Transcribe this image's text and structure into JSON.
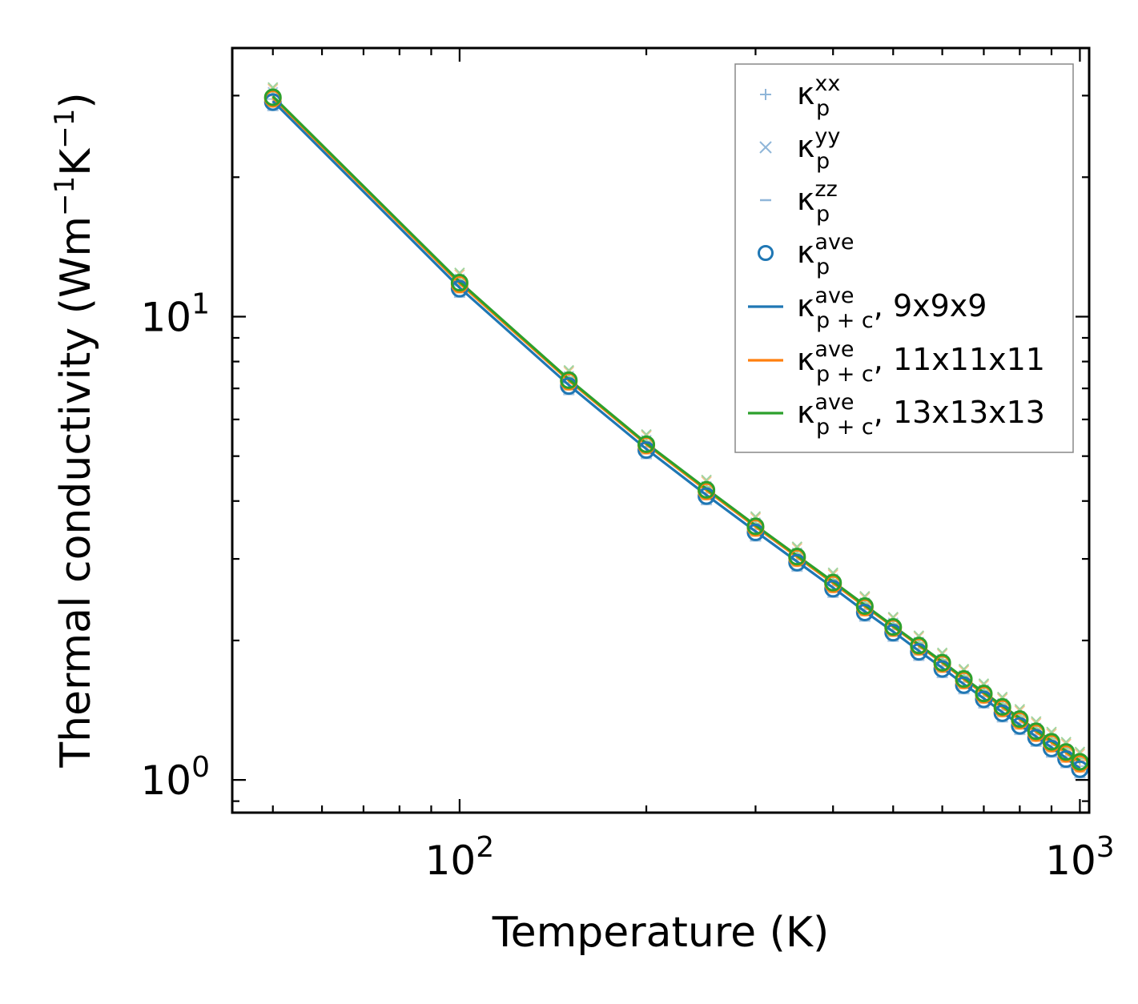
{
  "chart_data": {
    "type": "line",
    "xscale": "log",
    "yscale": "log",
    "xlabel": "Temperature (K)",
    "ylabel": "Thermal conductivity (Wm",
    "ylabel_sup1": "−1",
    "ylabel_mid": "K",
    "ylabel_sup2": "−1",
    "ylabel_end": ")",
    "xlim": [
      43,
      1035
    ],
    "ylim": [
      0.85,
      38
    ],
    "xticks": [
      {
        "value": 100,
        "base": "10",
        "exp": "2"
      },
      {
        "value": 1000,
        "base": "10",
        "exp": "3"
      }
    ],
    "yticks": [
      {
        "value": 1,
        "base": "10",
        "exp": "0"
      },
      {
        "value": 10,
        "base": "10",
        "exp": "1"
      }
    ],
    "x": [
      50,
      100,
      150,
      200,
      250,
      300,
      350,
      400,
      450,
      500,
      550,
      600,
      650,
      700,
      750,
      800,
      850,
      900,
      950,
      1000
    ],
    "series": [
      {
        "name": "κp+c ave, 9x9x9",
        "kind": "line",
        "color": "#1f77b4",
        "values": [
          29.2,
          11.55,
          7.12,
          5.18,
          4.12,
          3.44,
          2.96,
          2.6,
          2.31,
          2.09,
          1.9,
          1.745,
          1.61,
          1.5,
          1.4,
          1.315,
          1.24,
          1.175,
          1.115,
          1.06
        ]
      },
      {
        "name": "κp+c ave, 11x11x11",
        "kind": "line",
        "color": "#ff7f0e",
        "values": [
          29.7,
          11.8,
          7.28,
          5.3,
          4.22,
          3.52,
          3.03,
          2.66,
          2.37,
          2.14,
          1.95,
          1.79,
          1.65,
          1.535,
          1.435,
          1.35,
          1.27,
          1.205,
          1.145,
          1.09
        ]
      },
      {
        "name": "κp+c ave, 13x13x13",
        "kind": "line",
        "color": "#2ca02c",
        "values": [
          29.9,
          11.9,
          7.33,
          5.33,
          4.25,
          3.545,
          3.05,
          2.68,
          2.385,
          2.15,
          1.96,
          1.8,
          1.66,
          1.545,
          1.445,
          1.36,
          1.28,
          1.215,
          1.155,
          1.1
        ]
      }
    ],
    "legend": {
      "position": "upper right",
      "entries": [
        {
          "marker": "plus",
          "sym": "κ",
          "sub": "p",
          "sup": "xx",
          "suffix": "",
          "color": "#8fb6d9"
        },
        {
          "marker": "x",
          "sym": "κ",
          "sub": "p",
          "sup": "yy",
          "suffix": "",
          "color": "#8fb6d9"
        },
        {
          "marker": "hline",
          "sym": "κ",
          "sub": "p",
          "sup": "zz",
          "suffix": "",
          "color": "#8fb6d9"
        },
        {
          "marker": "circle",
          "sym": "κ",
          "sub": "p",
          "sup": "ave",
          "suffix": "",
          "color": "#1f77b4"
        },
        {
          "marker": "line",
          "sym": "κ",
          "sub": "p + c",
          "sup": "ave",
          "suffix": ", 9x9x9",
          "color": "#1f77b4"
        },
        {
          "marker": "line",
          "sym": "κ",
          "sub": "p + c",
          "sup": "ave",
          "suffix": ", 11x11x11",
          "color": "#ff7f0e"
        },
        {
          "marker": "line",
          "sym": "κ",
          "sub": "p + c",
          "sup": "ave",
          "suffix": ", 13x13x13",
          "color": "#2ca02c"
        }
      ]
    }
  }
}
